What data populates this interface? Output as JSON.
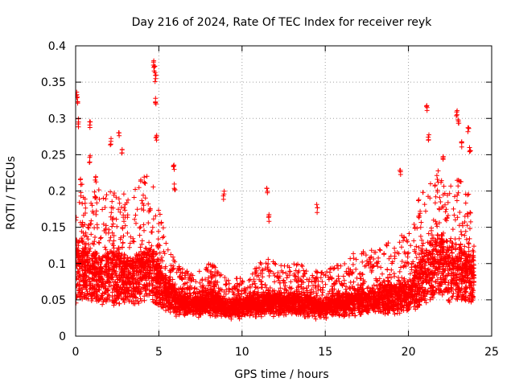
{
  "chart_data": {
    "type": "scatter",
    "title": "Day 216 of 2024, Rate Of TEC Index for receiver reyk",
    "xlabel": "GPS time / hours",
    "ylabel": "ROTI / TECUs",
    "xlim": [
      0,
      25
    ],
    "ylim": [
      0,
      0.4
    ],
    "x_ticks": [
      0,
      5,
      10,
      15,
      20,
      25
    ],
    "x_tick_labels": [
      "0",
      "5",
      "10",
      "15",
      "20",
      "25"
    ],
    "y_ticks": [
      0,
      0.05,
      0.1,
      0.15,
      0.2,
      0.25,
      0.3,
      0.35,
      0.4
    ],
    "y_tick_labels": [
      "0",
      "0.05",
      "0.1",
      "0.15",
      "0.2",
      "0.25",
      "0.3",
      "0.35",
      "0.4"
    ],
    "grid": true,
    "marker": "+",
    "color": "#ff0000",
    "series": [
      {
        "name": "ROTI",
        "envelope": {
          "hours": [
            0,
            0.3,
            0.6,
            1,
            1.5,
            2,
            2.5,
            3,
            3.5,
            4,
            4.5,
            5,
            5.5,
            6,
            6.5,
            7,
            7.5,
            8,
            8.5,
            9,
            9.5,
            10,
            10.5,
            11,
            11.5,
            12,
            12.5,
            13,
            13.5,
            14,
            14.5,
            15,
            15.5,
            16,
            16.5,
            17,
            17.5,
            18,
            18.5,
            19,
            19.5,
            20,
            20.5,
            21,
            21.5,
            22,
            22.5,
            23,
            23.5,
            24
          ],
          "typical": [
            0.09,
            0.1,
            0.09,
            0.085,
            0.08,
            0.085,
            0.085,
            0.08,
            0.08,
            0.09,
            0.09,
            0.075,
            0.06,
            0.05,
            0.045,
            0.045,
            0.045,
            0.05,
            0.045,
            0.04,
            0.04,
            0.04,
            0.045,
            0.045,
            0.045,
            0.045,
            0.045,
            0.045,
            0.045,
            0.045,
            0.04,
            0.04,
            0.045,
            0.045,
            0.045,
            0.05,
            0.05,
            0.05,
            0.055,
            0.055,
            0.055,
            0.055,
            0.07,
            0.09,
            0.1,
            0.1,
            0.095,
            0.09,
            0.085,
            0.08
          ],
          "upper": [
            0.2,
            0.22,
            0.19,
            0.2,
            0.21,
            0.2,
            0.21,
            0.2,
            0.2,
            0.22,
            0.23,
            0.18,
            0.13,
            0.11,
            0.09,
            0.09,
            0.1,
            0.1,
            0.1,
            0.08,
            0.08,
            0.08,
            0.09,
            0.1,
            0.11,
            0.1,
            0.1,
            0.1,
            0.1,
            0.09,
            0.09,
            0.09,
            0.1,
            0.1,
            0.11,
            0.12,
            0.12,
            0.12,
            0.13,
            0.13,
            0.14,
            0.14,
            0.18,
            0.22,
            0.23,
            0.23,
            0.22,
            0.22,
            0.2,
            0.18
          ]
        },
        "spikes": [
          {
            "hour": 0.05,
            "roti": 0.34
          },
          {
            "hour": 0.1,
            "roti": 0.33
          },
          {
            "hour": 0.15,
            "roti": 0.3
          },
          {
            "hour": 0.85,
            "roti": 0.297
          },
          {
            "hour": 0.85,
            "roti": 0.25
          },
          {
            "hour": 1.2,
            "roti": 0.22
          },
          {
            "hour": 2.1,
            "roti": 0.275
          },
          {
            "hour": 2.6,
            "roti": 0.285
          },
          {
            "hour": 2.8,
            "roti": 0.26
          },
          {
            "hour": 4.7,
            "roti": 0.38
          },
          {
            "hour": 4.75,
            "roti": 0.375
          },
          {
            "hour": 4.8,
            "roti": 0.36
          },
          {
            "hour": 4.8,
            "roti": 0.328
          },
          {
            "hour": 4.85,
            "roti": 0.28
          },
          {
            "hour": 5.9,
            "roti": 0.24
          },
          {
            "hour": 5.95,
            "roti": 0.21
          },
          {
            "hour": 8.9,
            "roti": 0.2
          },
          {
            "hour": 11.5,
            "roti": 0.205
          },
          {
            "hour": 11.6,
            "roti": 0.17
          },
          {
            "hour": 14.5,
            "roti": 0.182
          },
          {
            "hour": 19.5,
            "roti": 0.232
          },
          {
            "hour": 21.1,
            "roti": 0.318
          },
          {
            "hour": 21.2,
            "roti": 0.28
          },
          {
            "hour": 22.1,
            "roti": 0.25
          },
          {
            "hour": 22.9,
            "roti": 0.315
          },
          {
            "hour": 23.0,
            "roti": 0.3
          },
          {
            "hour": 23.2,
            "roti": 0.27
          },
          {
            "hour": 23.6,
            "roti": 0.29
          },
          {
            "hour": 23.7,
            "roti": 0.26
          }
        ]
      }
    ]
  }
}
